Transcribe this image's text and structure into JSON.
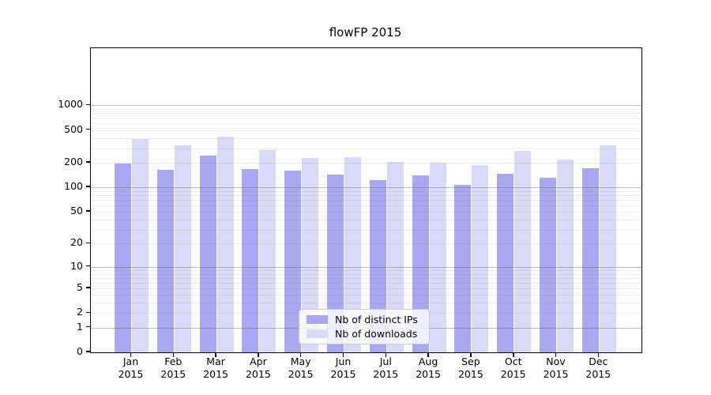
{
  "chart_data": {
    "type": "bar",
    "title": "flowFP 2015",
    "x_month_labels": [
      "Jan",
      "Feb",
      "Mar",
      "Apr",
      "May",
      "Jun",
      "Jul",
      "Aug",
      "Sep",
      "Oct",
      "Nov",
      "Dec"
    ],
    "x_year_label": "2015",
    "series": [
      {
        "name": "Nb of distinct IPs",
        "color": "#a8a8f0",
        "values": [
          195,
          163,
          247,
          167,
          159,
          143,
          124,
          140,
          108,
          147,
          130,
          171
        ]
      },
      {
        "name": "Nb of downloads",
        "color": "#d9d9f8",
        "values": [
          387,
          323,
          419,
          285,
          228,
          233,
          205,
          200,
          189,
          277,
          220,
          326
        ]
      }
    ],
    "y_axis": {
      "scale": "log1p",
      "ticks": [
        0,
        1,
        2,
        5,
        10,
        20,
        50,
        100,
        200,
        500,
        1000
      ],
      "major_gridline_values": [
        1,
        10,
        100,
        1000
      ],
      "minor_gridline_values": [
        2,
        3,
        4,
        5,
        6,
        7,
        8,
        9,
        20,
        30,
        40,
        50,
        60,
        70,
        80,
        90,
        200,
        300,
        400,
        500,
        600,
        700,
        800,
        900
      ],
      "ylim_top": 1280
    },
    "legend": {
      "position": "lower-center"
    },
    "grid": true,
    "colors": {
      "background": "#ffffff",
      "spine": "#000000",
      "major_grid": "#9a9a9a",
      "minor_grid": "#e9e9e9",
      "text": "#000000"
    }
  }
}
